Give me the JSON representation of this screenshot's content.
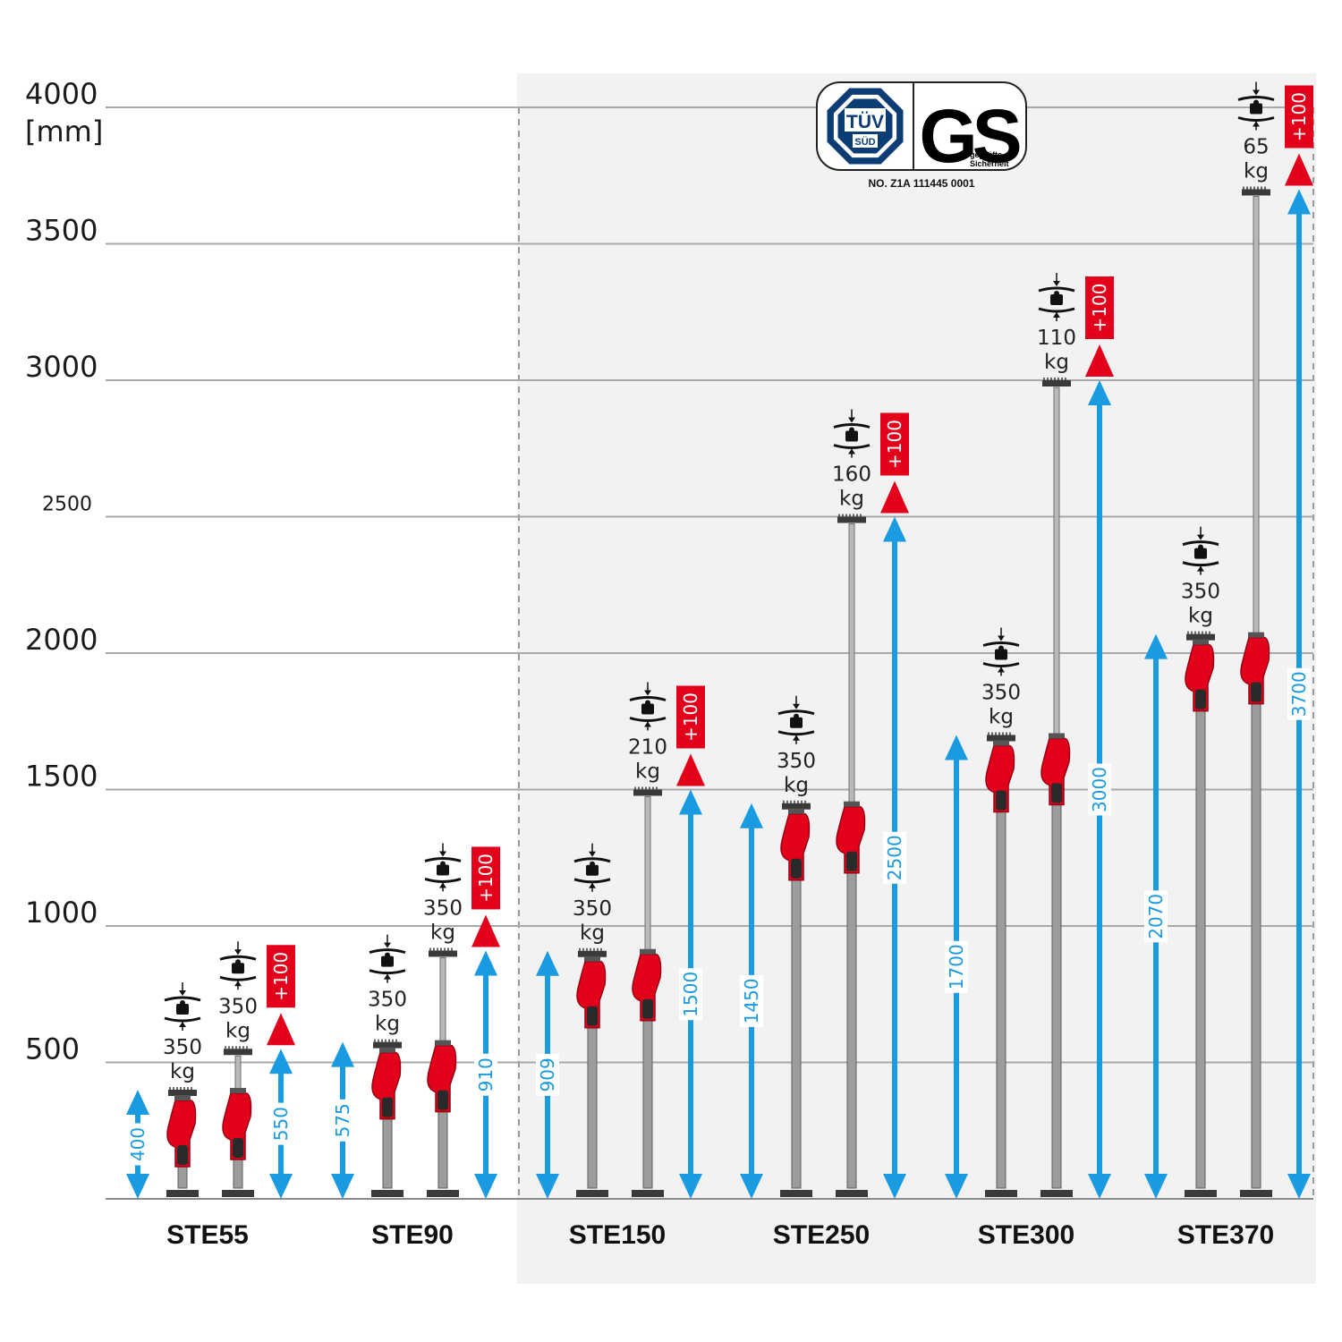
{
  "chart_data": {
    "type": "bar",
    "title": "",
    "unit_label": "[mm]",
    "y_ticks": [
      {
        "value": 4000,
        "label": "4000"
      },
      {
        "value": 3500,
        "label": "3500"
      },
      {
        "value": 3000,
        "label": "3000"
      },
      {
        "value": 2500,
        "label": "2500"
      },
      {
        "value": 2000,
        "label": "2000"
      },
      {
        "value": 1500,
        "label": "1500"
      },
      {
        "value": 1000,
        "label": "1000"
      },
      {
        "value": 500,
        "label": "500"
      }
    ],
    "ylim": [
      0,
      4000
    ],
    "grid": true,
    "categories": [
      "STE55",
      "STE90",
      "STE150",
      "STE250",
      "STE300",
      "STE370"
    ],
    "series": [
      {
        "values": [
          400,
          575,
          909,
          1450,
          1700,
          2070
        ],
        "labels": [
          "400",
          "575",
          "909",
          "1450",
          "1700",
          "2070"
        ]
      },
      {
        "values": [
          550,
          910,
          1500,
          2500,
          3000,
          3700
        ],
        "labels": [
          "550",
          "910",
          "1500",
          "2500",
          "3000",
          "3700"
        ]
      }
    ],
    "load_min": [
      "350",
      "350",
      "350",
      "350",
      "350",
      "350"
    ],
    "load_max": [
      "350",
      "350",
      "210",
      "160",
      "110",
      "65"
    ],
    "load_unit": "kg",
    "extension": "+100",
    "highlight_categories": [
      "STE150",
      "STE250",
      "STE300",
      "STE370"
    ]
  },
  "certification": {
    "tuv_top": "TÜV",
    "tuv_bottom": "SÜD",
    "gs_mark": "GS",
    "gs_sub1": "geprüfte",
    "gs_sub2": "Sicherheit",
    "number": "NO. Z1A 111445 0001"
  },
  "colors": {
    "arrow_blue": "#1a9ae0",
    "extension_red": "#e3001b",
    "grid": "#a8a8a8",
    "highlight_bg": "#f2f2f2"
  }
}
